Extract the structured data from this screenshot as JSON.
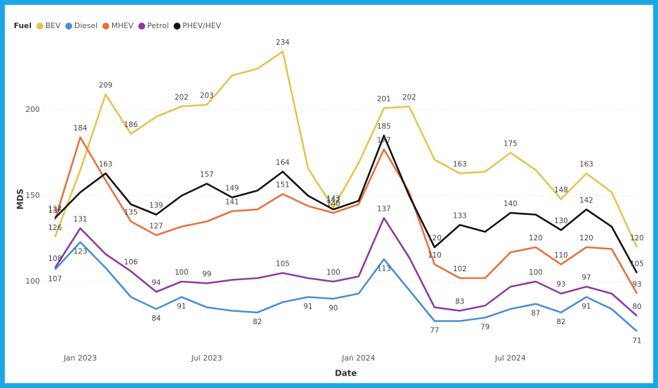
{
  "chart_data": {
    "type": "line",
    "legend_title": "Fuel",
    "y_label": "MDS",
    "x_label": "Date",
    "legend": "top-left",
    "grid": true,
    "categories": [
      null,
      "Jan 2023",
      null,
      null,
      null,
      null,
      "Jul 2023",
      null,
      null,
      null,
      null,
      null,
      "Jan 2024",
      null,
      null,
      null,
      null,
      null,
      "Jul 2024",
      null,
      null,
      null,
      null,
      null
    ],
    "ylim": [
      64,
      240
    ],
    "yticks": [
      100,
      150,
      200
    ],
    "series": [
      {
        "name": "BEV",
        "color": "#e6c34a",
        "values": [
          126,
          165,
          209,
          186,
          196,
          202,
          203,
          220,
          224,
          234,
          166,
          143,
          169,
          201,
          202,
          171,
          163,
          164,
          175,
          165,
          148,
          163,
          152,
          120
        ],
        "value_labels": [
          "126",
          null,
          "209",
          "186",
          null,
          "202",
          "203",
          null,
          null,
          "234",
          null,
          "143",
          null,
          "201",
          "202",
          null,
          "163",
          null,
          "175",
          null,
          "148",
          "163",
          null,
          "120"
        ]
      },
      {
        "name": "Diesel",
        "color": "#4a8ed3",
        "values": [
          107,
          123,
          108,
          91,
          84,
          91,
          85,
          83,
          82,
          88,
          91,
          90,
          93,
          113,
          95,
          77,
          77,
          79,
          84,
          87,
          82,
          91,
          84,
          71
        ],
        "value_labels": [
          "107",
          "123",
          null,
          null,
          "84",
          "91",
          null,
          null,
          "82",
          null,
          "91",
          "90",
          null,
          "113",
          null,
          "77",
          null,
          "79",
          null,
          "87",
          "82",
          "91",
          null,
          "71"
        ]
      },
      {
        "name": "MHEV",
        "color": "#e8703a",
        "values": [
          136,
          184,
          159,
          135,
          127,
          132,
          135,
          141,
          142,
          151,
          144,
          140,
          145,
          177,
          152,
          110,
          102,
          102,
          117,
          120,
          110,
          120,
          119,
          93
        ],
        "value_labels": [
          "136",
          "184",
          null,
          "135",
          "127",
          null,
          null,
          "141",
          null,
          "151",
          null,
          "140",
          null,
          "177",
          null,
          "110",
          "102",
          null,
          null,
          "120",
          "110",
          "120",
          null,
          "93"
        ]
      },
      {
        "name": "Petrol",
        "color": "#8e3b9f",
        "values": [
          108,
          131,
          116,
          106,
          94,
          100,
          99,
          101,
          102,
          105,
          102,
          100,
          103,
          137,
          114,
          85,
          83,
          86,
          97,
          100,
          93,
          97,
          93,
          80
        ],
        "value_labels": [
          "108",
          "131",
          null,
          "106",
          "94",
          "100",
          "99",
          null,
          null,
          "105",
          null,
          "100",
          null,
          "137",
          null,
          null,
          "83",
          null,
          null,
          "100",
          "93",
          "97",
          null,
          "80"
        ]
      },
      {
        "name": "PHEV/HEV",
        "color": "#111111",
        "values": [
          137,
          152,
          163,
          145,
          139,
          150,
          157,
          149,
          153,
          164,
          150,
          142,
          147,
          185,
          150,
          120,
          133,
          129,
          140,
          139,
          130,
          142,
          132,
          105
        ],
        "value_labels": [
          "137",
          null,
          "163",
          null,
          "139",
          null,
          "157",
          "149",
          null,
          "164",
          null,
          "142",
          null,
          "185",
          null,
          "120",
          "133",
          null,
          "140",
          null,
          "130",
          "142",
          null,
          "105"
        ]
      }
    ]
  }
}
